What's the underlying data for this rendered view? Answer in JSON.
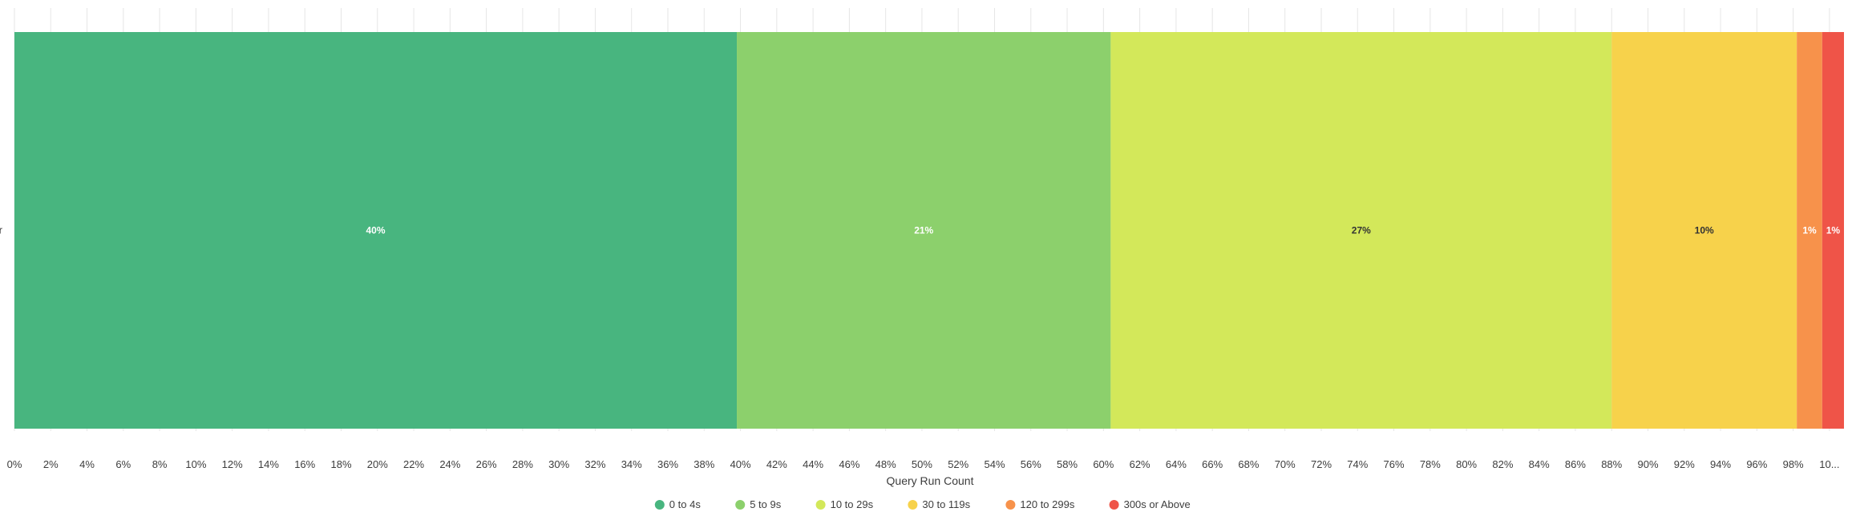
{
  "chart_data": {
    "type": "bar",
    "orientation": "horizontal",
    "stacked": "percent",
    "categories": [
      "r"
    ],
    "series": [
      {
        "name": "0 to 4s",
        "values": [
          40
        ],
        "label": "40%",
        "color": "#48b57f",
        "label_color": "#ffffff"
      },
      {
        "name": "5 to 9s",
        "values": [
          21
        ],
        "label": "21%",
        "color": "#8cd06c",
        "label_color": "#ffffff"
      },
      {
        "name": "10 to 29s",
        "values": [
          27
        ],
        "label": "27%",
        "color": "#d3e85a",
        "label_color": "#333333"
      },
      {
        "name": "30 to 119s",
        "values": [
          10
        ],
        "label": "10%",
        "color": "#f7d24b",
        "label_color": "#333333"
      },
      {
        "name": "120 to 299s",
        "values": [
          1
        ],
        "label": "1%",
        "color": "#f7924b",
        "label_color": "#ffffff"
      },
      {
        "name": "300s or Above",
        "values": [
          1
        ],
        "label": "1%",
        "color": "#ef5448",
        "label_color": "#ffffff"
      }
    ],
    "bounds": [
      0,
      39.8,
      60.4,
      88,
      98.2,
      99.6,
      100.8
    ],
    "xlabel": "Query Run Count",
    "ylabel": "",
    "xlim": [
      0,
      100.8
    ],
    "x_ticks": [
      "0%",
      "2%",
      "4%",
      "6%",
      "8%",
      "10%",
      "12%",
      "14%",
      "16%",
      "18%",
      "20%",
      "22%",
      "24%",
      "26%",
      "28%",
      "30%",
      "32%",
      "34%",
      "36%",
      "38%",
      "40%",
      "42%",
      "44%",
      "46%",
      "48%",
      "50%",
      "52%",
      "54%",
      "56%",
      "58%",
      "60%",
      "62%",
      "64%",
      "66%",
      "68%",
      "70%",
      "72%",
      "74%",
      "76%",
      "78%",
      "80%",
      "82%",
      "84%",
      "86%",
      "88%",
      "90%",
      "92%",
      "94%",
      "96%",
      "98%",
      "10..."
    ],
    "grid": true,
    "legend": "bottom-center"
  }
}
